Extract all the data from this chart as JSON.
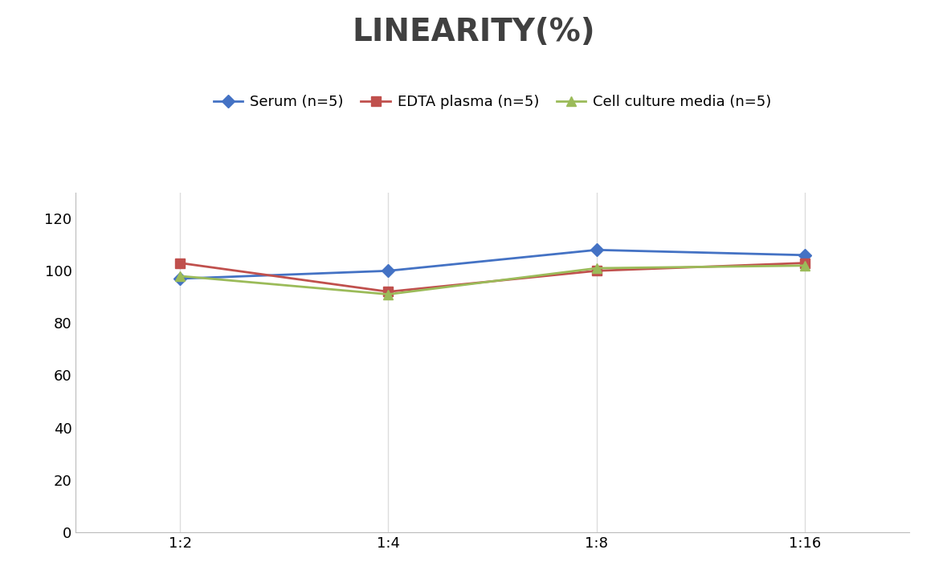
{
  "title": "LINEARITY(%)",
  "title_fontsize": 28,
  "title_fontweight": "bold",
  "title_color": "#404040",
  "x_labels": [
    "1:2",
    "1:4",
    "1:8",
    "1:16"
  ],
  "series": [
    {
      "label": "Serum (n=5)",
      "values": [
        97,
        100,
        108,
        106
      ],
      "color": "#4472C4",
      "marker": "D",
      "linewidth": 2,
      "markersize": 8
    },
    {
      "label": "EDTA plasma (n=5)",
      "values": [
        103,
        92,
        100,
        103
      ],
      "color": "#C0504D",
      "marker": "s",
      "linewidth": 2,
      "markersize": 8
    },
    {
      "label": "Cell culture media (n=5)",
      "values": [
        98,
        91,
        101,
        102
      ],
      "color": "#9BBB59",
      "marker": "^",
      "linewidth": 2,
      "markersize": 8
    }
  ],
  "ylim": [
    0,
    130
  ],
  "yticks": [
    0,
    20,
    40,
    60,
    80,
    100,
    120
  ],
  "grid_color": "#DDDDDD",
  "background_color": "#FFFFFF",
  "legend_fontsize": 13,
  "tick_fontsize": 13
}
